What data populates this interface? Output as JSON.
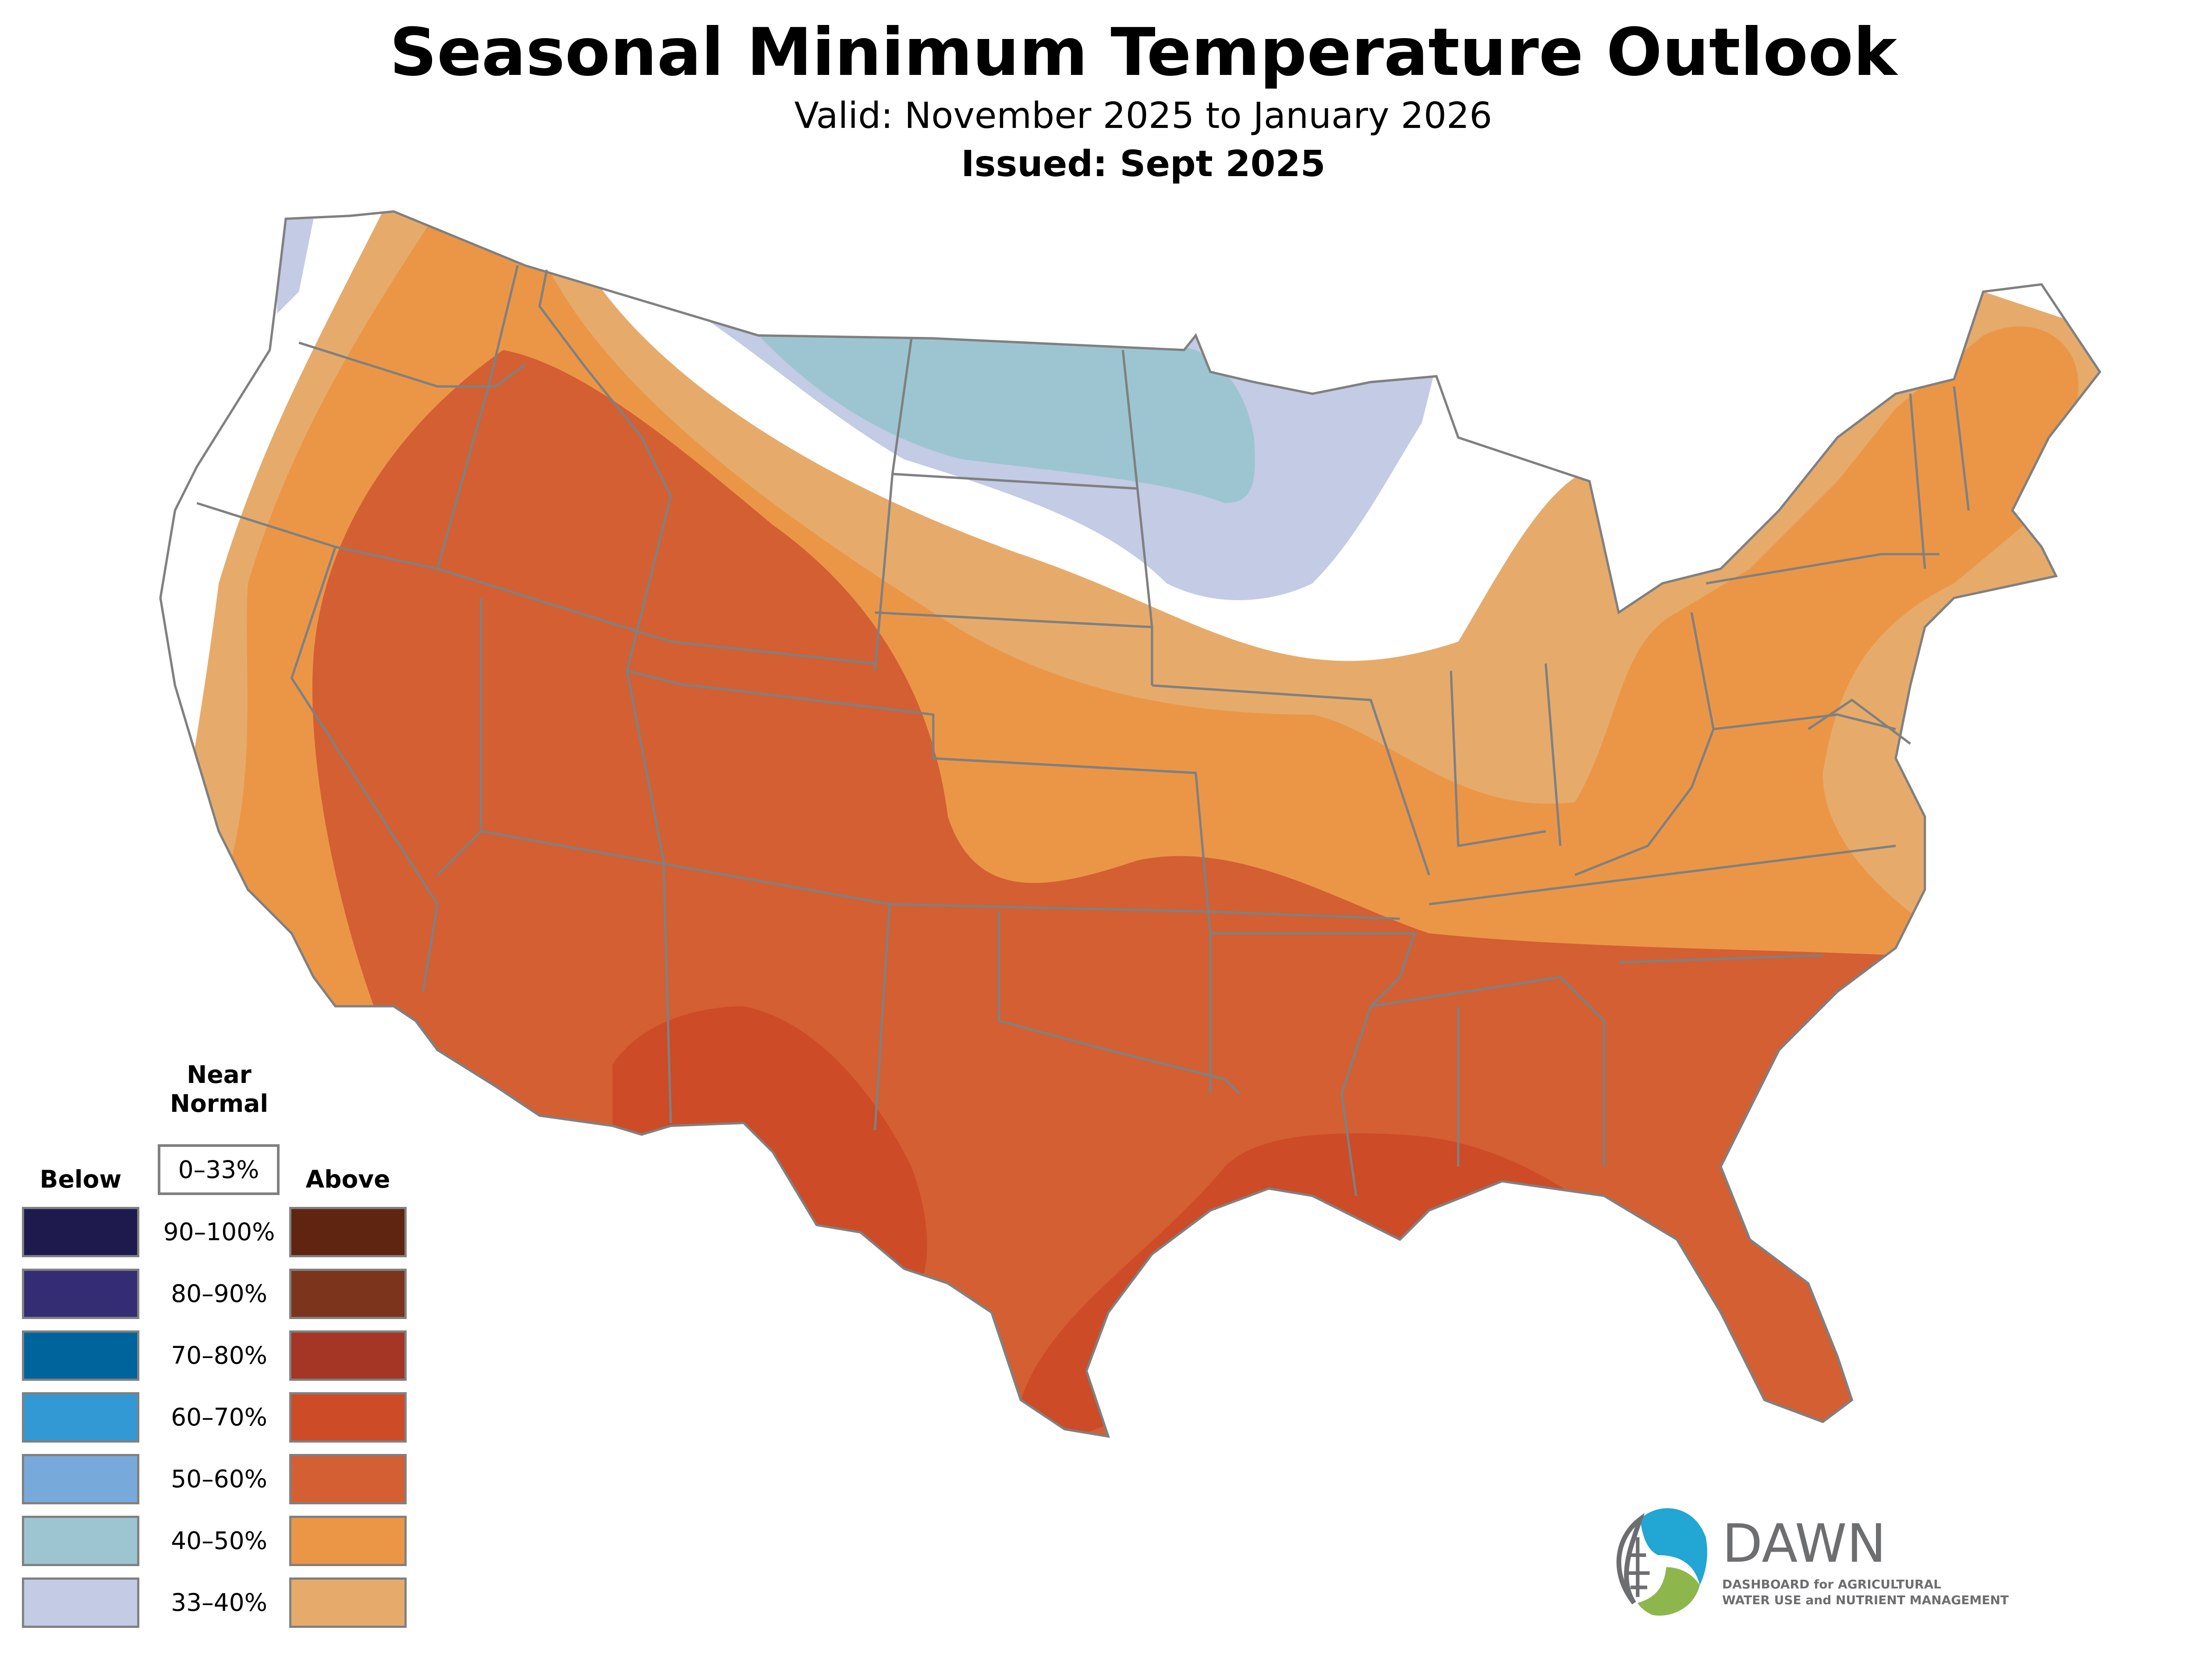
{
  "header": {
    "title": "Seasonal Minimum Temperature Outlook",
    "valid": "Valid: November 2025 to January 2026",
    "issued": "Issued: Sept 2025"
  },
  "legend": {
    "below_label": "Below",
    "above_label": "Above",
    "near_normal_line1": "Near",
    "near_normal_line2": "Normal",
    "near_normal_range": "0–33%",
    "rows": [
      {
        "range": "90–100%",
        "below_color": "#1f1a4e",
        "above_color": "#602510"
      },
      {
        "range": "80–90%",
        "below_color": "#342d73",
        "above_color": "#7d341d"
      },
      {
        "range": "70–80%",
        "below_color": "#00649c",
        "above_color": "#a53525"
      },
      {
        "range": "60–70%",
        "below_color": "#3399d5",
        "above_color": "#cd4b27"
      },
      {
        "range": "50–60%",
        "below_color": "#77aadb",
        "above_color": "#d35f33"
      },
      {
        "range": "40–50%",
        "below_color": "#9dc5d1",
        "above_color": "#eb9647"
      },
      {
        "range": "33–40%",
        "below_color": "#c3cbe5",
        "above_color": "#e6ab6b"
      }
    ]
  },
  "logo": {
    "name": "DAWN",
    "tagline_line1": "DASHBOARD for AGRICULTURAL",
    "tagline_line2": "WATER USE and NUTRIENT MANAGEMENT",
    "colors": {
      "blue": "#22a6d3",
      "green": "#8db74c",
      "gray": "#6d6e70"
    }
  },
  "map": {
    "border_color": "#808080",
    "categories": [
      "above-33-40",
      "above-40-50",
      "above-50-60",
      "above-60-70",
      "below-33-40",
      "below-40-50",
      "near-normal"
    ]
  }
}
